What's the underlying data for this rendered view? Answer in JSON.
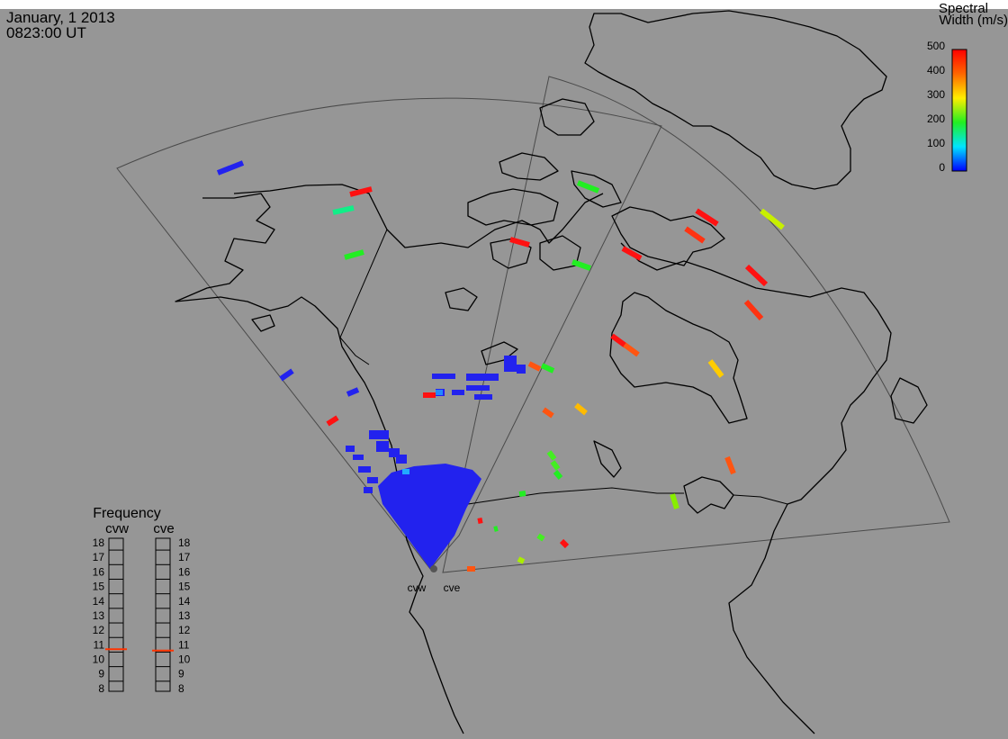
{
  "header": {
    "date": "January, 1 2013",
    "time": "0823:00 UT"
  },
  "colorbar": {
    "title_line1": "Spectral",
    "title_line2": "Width (m/s)",
    "ticks": [
      "500",
      "400",
      "300",
      "200",
      "100",
      "0"
    ]
  },
  "radars": [
    {
      "code": "cvw",
      "label": "cvw"
    },
    {
      "code": "cve",
      "label": "cve"
    }
  ],
  "frequency_panel": {
    "title": "Frequency",
    "columns": [
      "cvw",
      "cve"
    ],
    "levels": [
      "18",
      "17",
      "16",
      "15",
      "14",
      "13",
      "12",
      "11",
      "10",
      "9",
      "8"
    ],
    "marker_color": "#ff3300",
    "cvw_frequency_mhz": 10.7,
    "cve_frequency_mhz": 10.6
  },
  "colors": {
    "background": "#969696",
    "scatter_blue": "#2222ee",
    "scatter_red": "#ff1111",
    "scatter_orange": "#ff5511",
    "scatter_yellow": "#c8f000",
    "scatter_green": "#22ee22",
    "scatter_cyan": "#11ee88"
  }
}
